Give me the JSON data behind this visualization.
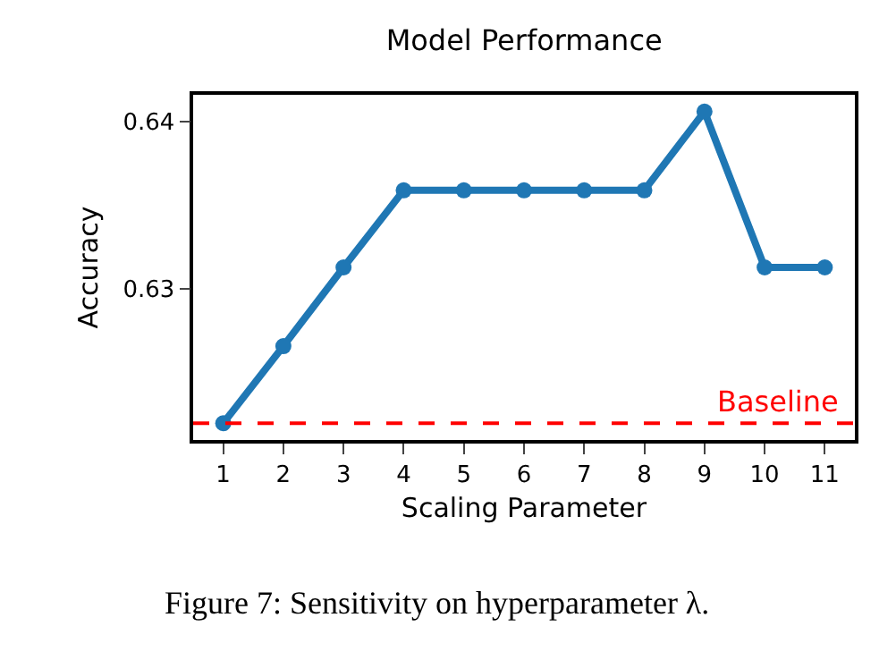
{
  "chart_data": {
    "type": "line",
    "title": "Model Performance",
    "xlabel": "Scaling Parameter",
    "ylabel": "Accuracy",
    "x": [
      1,
      2,
      3,
      4,
      5,
      6,
      7,
      8,
      9,
      10,
      11
    ],
    "series": [
      {
        "color": "#1f77b4",
        "values": [
          0.622,
          0.6266,
          0.6313,
          0.6359,
          0.6359,
          0.6359,
          0.6359,
          0.6359,
          0.6406,
          0.6313,
          0.6313
        ]
      }
    ],
    "xlim": [
      0.5,
      11.5
    ],
    "xticks": [
      1,
      2,
      3,
      4,
      5,
      6,
      7,
      8,
      9,
      10,
      11
    ],
    "ylim": [
      0.621,
      0.6416
    ],
    "yticks": [
      0.63,
      0.64
    ],
    "marker": "circle",
    "line_style": "solid",
    "grid": false,
    "ref_lines": [
      {
        "axis": "y",
        "value": 0.622,
        "label": "Baseline",
        "color": "#ff0000",
        "line_style": "dashed"
      }
    ],
    "annotations": [
      "Figure 7: Sensitivity on hyperparameter λ."
    ]
  }
}
